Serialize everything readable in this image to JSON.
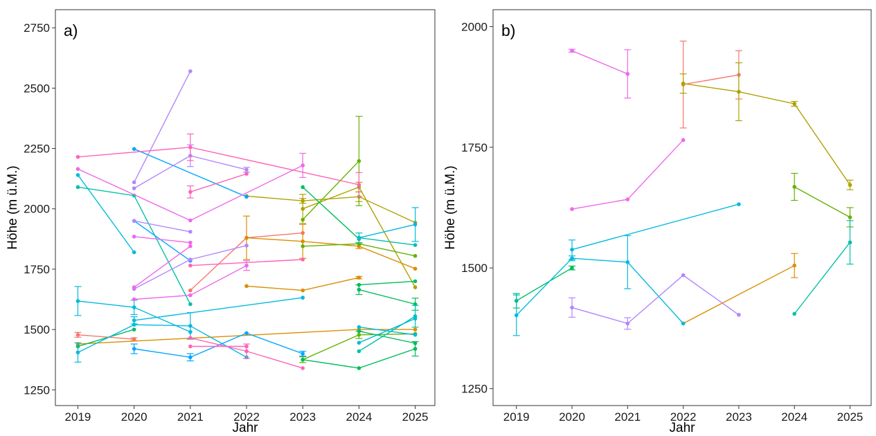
{
  "chart_data": [
    {
      "type": "line",
      "tag": "a)",
      "xlabel": "Jahr",
      "ylabel": "Höhe (m ü.M.)",
      "x_ticks": [
        2019,
        2020,
        2021,
        2022,
        2023,
        2024,
        2025
      ],
      "y_ticks": [
        1250,
        1500,
        1750,
        2000,
        2250,
        2500,
        2750
      ],
      "xlim": [
        2018.6,
        2025.35
      ],
      "ylim": [
        1185,
        2825
      ],
      "grid": false,
      "legend": "none",
      "series": [
        {
          "color": "#F8766D",
          "points": [
            [
              2019,
              1478,
              10
            ],
            [
              2020,
              1460,
              6
            ]
          ]
        },
        {
          "color": "#F8766D",
          "points": [
            [
              2021,
              1662,
              0
            ],
            [
              2022,
              1880,
              0
            ],
            [
              2023,
              1900,
              0
            ]
          ]
        },
        {
          "color": "#DB8E00",
          "points": [
            [
              2019,
              1440,
              0
            ],
            [
              2024,
              1500,
              0
            ],
            [
              2025,
              1500,
              0
            ]
          ]
        },
        {
          "color": "#DB8E00",
          "points": [
            [
              2022,
              1880,
              90
            ],
            [
              2023,
              1865,
              70
            ],
            [
              2024,
              1845,
              10
            ],
            [
              2025,
              1752,
              0
            ]
          ]
        },
        {
          "color": "#DB8E00",
          "points": [
            [
              2022,
              1680,
              0
            ],
            [
              2023,
              1662,
              0
            ],
            [
              2024,
              1715,
              5
            ]
          ]
        },
        {
          "color": "#AEA200",
          "points": [
            [
              2022,
              2053,
              0
            ],
            [
              2023,
              2033,
              10
            ],
            [
              2024,
              2050,
              20
            ],
            [
              2025,
              1943,
              0
            ]
          ]
        },
        {
          "color": "#AEA200",
          "points": [
            [
              2023,
              2000,
              60
            ],
            [
              2024,
              2090,
              20
            ],
            [
              2025,
              1675,
              0
            ]
          ]
        },
        {
          "color": "#64B200",
          "points": [
            [
              2023,
              1375,
              12
            ],
            [
              2024,
              1478,
              15
            ],
            [
              2025,
              1482,
              0
            ]
          ]
        },
        {
          "color": "#64B200",
          "points": [
            [
              2023,
              1955,
              0
            ],
            [
              2024,
              2198,
              185
            ]
          ]
        },
        {
          "color": "#64B200",
          "points": [
            [
              2023,
              1845,
              0
            ],
            [
              2024,
              1855,
              0
            ],
            [
              2025,
              1805,
              0
            ]
          ]
        },
        {
          "color": "#00BD5C",
          "points": [
            [
              2019,
              1430,
              0
            ],
            [
              2020,
              1500,
              0
            ]
          ]
        },
        {
          "color": "#00BD5C",
          "points": [
            [
              2024,
              1665,
              20
            ],
            [
              2025,
              1605,
              25
            ]
          ]
        },
        {
          "color": "#00BD5C",
          "points": [
            [
              2024,
              1685,
              0
            ],
            [
              2025,
              1700,
              0
            ]
          ]
        },
        {
          "color": "#00BD5C",
          "points": [
            [
              2023,
              2090,
              0
            ],
            [
              2024,
              1875,
              0
            ]
          ]
        },
        {
          "color": "#00BD5C",
          "points": [
            [
              2023,
              1375,
              0
            ],
            [
              2024,
              1340,
              0
            ],
            [
              2025,
              1420,
              30
            ]
          ]
        },
        {
          "color": "#00BD5C",
          "points": [
            [
              2024,
              1493,
              0
            ],
            [
              2025,
              1443,
              0
            ]
          ]
        },
        {
          "color": "#00C1A7",
          "points": [
            [
              2019,
              2090,
              0
            ],
            [
              2020,
              2055,
              0
            ],
            [
              2021,
              1605,
              0
            ]
          ]
        },
        {
          "color": "#00C1A7",
          "points": [
            [
              2024,
              1880,
              20
            ],
            [
              2025,
              1850,
              0
            ]
          ]
        },
        {
          "color": "#00C1A7",
          "points": [
            [
              2024,
              1410,
              0
            ],
            [
              2025,
              1555,
              45
            ]
          ]
        },
        {
          "color": "#00BADE",
          "points": [
            [
              2019,
              1618,
              60
            ],
            [
              2020,
              1592,
              30
            ],
            [
              2021,
              1490,
              0
            ]
          ]
        },
        {
          "color": "#00BADE",
          "points": [
            [
              2019,
              1405,
              40
            ],
            [
              2020,
              1520,
              0
            ],
            [
              2021,
              1515,
              55
            ],
            [
              2022,
              1385,
              0
            ]
          ]
        },
        {
          "color": "#00BADE",
          "points": [
            [
              2020,
              1538,
              15
            ],
            [
              2023,
              1632,
              0
            ]
          ]
        },
        {
          "color": "#00BADE",
          "points": [
            [
              2019,
              2140,
              0
            ],
            [
              2020,
              1820,
              0
            ]
          ]
        },
        {
          "color": "#00BADE",
          "points": [
            [
              2024,
              1880,
              0
            ],
            [
              2025,
              1935,
              70
            ]
          ]
        },
        {
          "color": "#00BADE",
          "points": [
            [
              2024,
              1445,
              0
            ],
            [
              2025,
              1545,
              0
            ]
          ]
        },
        {
          "color": "#00BADE",
          "points": [
            [
              2024,
              1510,
              0
            ],
            [
              2025,
              1478,
              0
            ]
          ]
        },
        {
          "color": "#00A6FF",
          "points": [
            [
              2020,
              2248,
              0
            ],
            [
              2022,
              2050,
              0
            ]
          ]
        },
        {
          "color": "#00A6FF",
          "points": [
            [
              2020,
              1950,
              0
            ],
            [
              2021,
              1785,
              0
            ]
          ]
        },
        {
          "color": "#00A6FF",
          "points": [
            [
              2020,
              1420,
              20
            ],
            [
              2021,
              1385,
              15
            ],
            [
              2022,
              1485,
              0
            ],
            [
              2023,
              1400,
              10
            ]
          ]
        },
        {
          "color": "#B385FF",
          "points": [
            [
              2020,
              2110,
              0
            ],
            [
              2021,
              2570,
              0
            ]
          ]
        },
        {
          "color": "#B385FF",
          "points": [
            [
              2020,
              1950,
              0
            ],
            [
              2021,
              1905,
              0
            ]
          ]
        },
        {
          "color": "#B385FF",
          "points": [
            [
              2020,
              2085,
              0
            ],
            [
              2021,
              2220,
              45
            ],
            [
              2022,
              2162,
              10
            ]
          ]
        },
        {
          "color": "#B385FF",
          "points": [
            [
              2020,
              1668,
              0
            ],
            [
              2021,
              1790,
              0
            ],
            [
              2022,
              1848,
              0
            ]
          ]
        },
        {
          "color": "#EF67EB",
          "points": [
            [
              2019,
              2165,
              0
            ],
            [
              2021,
              1952,
              0
            ],
            [
              2023,
              2180,
              50
            ]
          ]
        },
        {
          "color": "#EF67EB",
          "points": [
            [
              2020,
              1885,
              0
            ],
            [
              2021,
              1860,
              0
            ]
          ]
        },
        {
          "color": "#EF67EB",
          "points": [
            [
              2020,
              1625,
              0
            ],
            [
              2021,
              1642,
              0
            ],
            [
              2022,
              1765,
              20
            ]
          ]
        },
        {
          "color": "#EF67EB",
          "points": [
            [
              2020,
              1675,
              0
            ],
            [
              2021,
              1845,
              0
            ]
          ]
        },
        {
          "color": "#FF63B6",
          "points": [
            [
              2019,
              2215,
              0
            ],
            [
              2021,
              2255,
              55
            ],
            [
              2024,
              2100,
              50
            ]
          ]
        },
        {
          "color": "#FF63B6",
          "points": [
            [
              2021,
              2070,
              25
            ],
            [
              2022,
              2145,
              0
            ]
          ]
        },
        {
          "color": "#FF63B6",
          "points": [
            [
              2021,
              1765,
              0
            ],
            [
              2023,
              1790,
              0
            ]
          ]
        },
        {
          "color": "#FF63B6",
          "points": [
            [
              2021,
              1430,
              0
            ],
            [
              2022,
              1430,
              0
            ]
          ]
        },
        {
          "color": "#FF63B6",
          "points": [
            [
              2021,
              1465,
              0
            ],
            [
              2022,
              1410,
              30
            ],
            [
              2023,
              1340,
              0
            ]
          ]
        }
      ]
    },
    {
      "type": "line",
      "tag": "b)",
      "xlabel": "Jahr",
      "ylabel": "Höhe (m ü.M.)",
      "x_ticks": [
        2019,
        2020,
        2021,
        2022,
        2023,
        2024,
        2025
      ],
      "y_ticks": [
        1250,
        1500,
        1750,
        2000
      ],
      "xlim": [
        2018.58,
        2025.38
      ],
      "ylim": [
        1215,
        2035
      ],
      "grid": false,
      "legend": "none",
      "series": [
        {
          "color": "#F8766D",
          "points": [
            [
              2022,
              1880,
              90
            ],
            [
              2023,
              1900,
              50
            ]
          ]
        },
        {
          "color": "#DB8E00",
          "points": [
            [
              2022,
              1385,
              0
            ],
            [
              2024,
              1505,
              25
            ]
          ]
        },
        {
          "color": "#AEA200",
          "points": [
            [
              2022,
              1882,
              20
            ],
            [
              2023,
              1865,
              60
            ],
            [
              2024,
              1840,
              5
            ],
            [
              2025,
              1672,
              10
            ]
          ]
        },
        {
          "color": "#64B200",
          "points": [
            [
              2024,
              1668,
              28
            ],
            [
              2025,
              1605,
              20
            ]
          ]
        },
        {
          "color": "#00BD5C",
          "points": [
            [
              2019,
              1432,
              15
            ],
            [
              2020,
              1500,
              4
            ]
          ]
        },
        {
          "color": "#00C1A7",
          "points": [
            [
              2024,
              1405,
              0
            ],
            [
              2025,
              1553,
              45
            ]
          ]
        },
        {
          "color": "#00BADE",
          "points": [
            [
              2019,
              1402,
              42
            ],
            [
              2020,
              1520,
              5
            ],
            [
              2021,
              1512,
              55
            ],
            [
              2022,
              1385,
              0
            ]
          ]
        },
        {
          "color": "#00BADE",
          "points": [
            [
              2020,
              1538,
              20
            ],
            [
              2023,
              1632,
              0
            ]
          ]
        },
        {
          "color": "#B385FF",
          "points": [
            [
              2020,
              1418,
              20
            ],
            [
              2021,
              1385,
              12
            ],
            [
              2022,
              1485,
              0
            ],
            [
              2023,
              1403,
              0
            ]
          ]
        },
        {
          "color": "#EF67EB",
          "points": [
            [
              2020,
              1950,
              3
            ],
            [
              2021,
              1902,
              50
            ]
          ]
        },
        {
          "color": "#EF67EB",
          "points": [
            [
              2020,
              1622,
              0
            ],
            [
              2021,
              1642,
              0
            ],
            [
              2022,
              1765,
              0
            ]
          ]
        }
      ]
    }
  ]
}
